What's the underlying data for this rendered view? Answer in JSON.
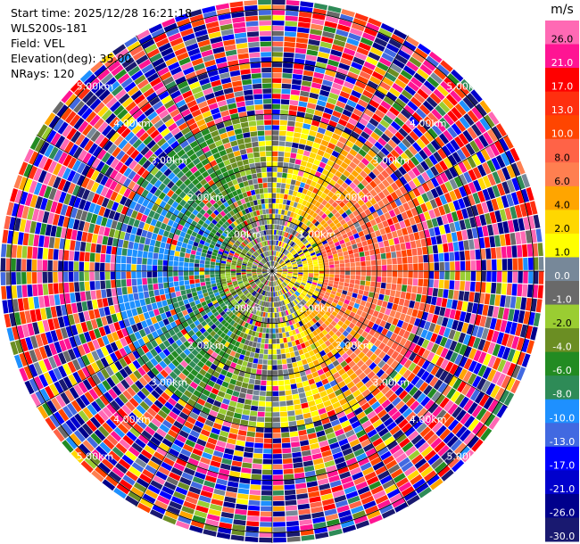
{
  "info": {
    "start_time": "Start time: 2025/12/28 16:21:18",
    "station": "WLS200s-181",
    "field": "Field: VEL",
    "elevation": "Elevation(deg): 35.00",
    "nrays": "NRays: 120"
  },
  "colorbar": {
    "unit": "m/s",
    "ticks": [
      "26.0",
      "21.0",
      "17.0",
      "13.0",
      "10.0",
      "8.0",
      "6.0",
      "4.0",
      "2.0",
      "1.0",
      "0.0",
      "-1.0",
      "-2.0",
      "-4.0",
      "-6.0",
      "-8.0",
      "-10.0",
      "-13.0",
      "-17.0",
      "-21.0",
      "-26.0",
      "-30.0"
    ],
    "colors": [
      "#ff69b4",
      "#ff1493",
      "#ff0000",
      "#ff2f0f",
      "#ff4500",
      "#ff6347",
      "#ff7f50",
      "#ffa500",
      "#ffd700",
      "#ffff00",
      "#778899",
      "#696969",
      "#9acd32",
      "#6b8e23",
      "#228b22",
      "#2e8b57",
      "#1e90ff",
      "#4169e1",
      "#0000ff",
      "#0000cd",
      "#00008b",
      "#191970"
    ]
  },
  "chart_data": {
    "type": "heatmap",
    "subtype": "radar-ppi",
    "field": "VEL",
    "unit": "m/s",
    "nrays": 120,
    "elevation_deg": 35.0,
    "range_rings_km": [
      1.0,
      2.0,
      3.0,
      4.0,
      5.0
    ],
    "range_ring_labels": [
      "1.00km",
      "2.00km",
      "3.00km",
      "4.00km",
      "5.00km"
    ],
    "max_range_km": 5.2,
    "radial_lines_deg": [
      0,
      30,
      60,
      90,
      120,
      150,
      180,
      210,
      240,
      270,
      300,
      330
    ],
    "color_range": [
      -30.0,
      30.0
    ],
    "velocity_pattern": {
      "description": "inner ~3 km shows coherent dipole: positive (yellow/orange/red) to east, negative (blue) to west; outer gates noisy",
      "coherent_range_km": 3.0,
      "max_abs_velocity_inner": 10.0
    }
  }
}
